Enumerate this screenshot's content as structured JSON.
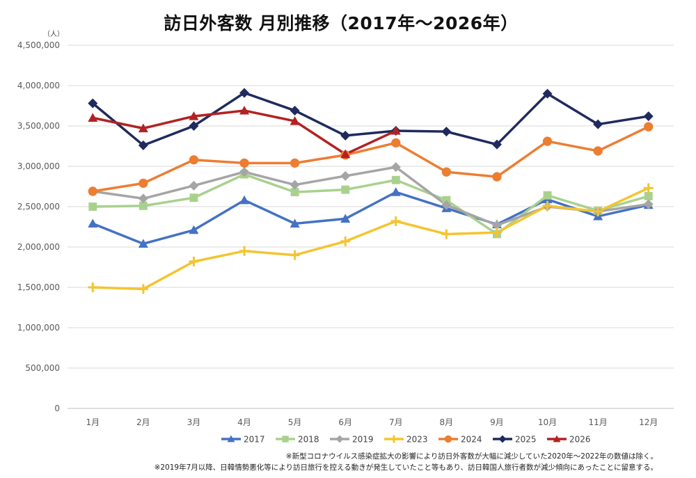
{
  "chart_data": {
    "type": "line",
    "title": "訪日外客数 月別推移（2017年～2026年）",
    "unit_label": "（人）",
    "categories": [
      "1月",
      "2月",
      "3月",
      "4月",
      "5月",
      "6月",
      "7月",
      "8月",
      "9月",
      "10月",
      "11月",
      "12月"
    ],
    "ylim": [
      0,
      4500000
    ],
    "yticks": [
      0,
      500000,
      1000000,
      1500000,
      2000000,
      2500000,
      3000000,
      3500000,
      4000000,
      4500000
    ],
    "ytick_labels": [
      "0",
      "500,000",
      "1,000,000",
      "1,500,000",
      "2,000,000",
      "2,500,000",
      "3,000,000",
      "3,500,000",
      "4,000,000",
      "4,500,000"
    ],
    "grid": true,
    "legend_position": "bottom",
    "series": [
      {
        "name": "2017",
        "color": "#4472C4",
        "marker": "triangle",
        "values": [
          2290000,
          2040000,
          2210000,
          2580000,
          2290000,
          2350000,
          2680000,
          2480000,
          2280000,
          2590000,
          2380000,
          2520000
        ]
      },
      {
        "name": "2018",
        "color": "#A9D18E",
        "marker": "square",
        "values": [
          2500000,
          2510000,
          2610000,
          2900000,
          2680000,
          2710000,
          2830000,
          2580000,
          2160000,
          2640000,
          2450000,
          2630000
        ]
      },
      {
        "name": "2019",
        "color": "#A5A5A5",
        "marker": "diamond",
        "values": [
          2690000,
          2600000,
          2760000,
          2930000,
          2770000,
          2880000,
          2990000,
          2520000,
          2270000,
          2500000,
          2440000,
          2530000
        ]
      },
      {
        "name": "2023",
        "color": "#F4C430",
        "marker": "plus",
        "values": [
          1500000,
          1480000,
          1820000,
          1950000,
          1900000,
          2070000,
          2320000,
          2160000,
          2180000,
          2510000,
          2440000,
          2730000
        ]
      },
      {
        "name": "2024",
        "color": "#ED7D31",
        "marker": "circle",
        "values": [
          2690000,
          2790000,
          3080000,
          3040000,
          3040000,
          3140000,
          3290000,
          2930000,
          2870000,
          3310000,
          3190000,
          3490000
        ]
      },
      {
        "name": "2025",
        "color": "#1F2A5E",
        "marker": "diamond",
        "values": [
          3780000,
          3260000,
          3500000,
          3910000,
          3690000,
          3380000,
          3440000,
          3430000,
          3270000,
          3900000,
          3520000,
          3620000
        ]
      },
      {
        "name": "2026",
        "color": "#B22222",
        "marker": "triangle",
        "values": [
          3600000,
          3470000,
          3620000,
          3690000,
          3560000,
          3150000,
          3440000,
          null,
          null,
          null,
          null,
          null
        ]
      }
    ]
  },
  "notes": {
    "note1": "※新型コロナウイルス感染症拡大の影響により訪日外客数が大幅に減少していた2020年～2022年の数値は除く。",
    "note2": "※2019年7月以降、日韓情勢悪化等により訪日旅行を控える動きが発生していたこと等もあり、訪日韓国人旅行者数が減少傾向にあったことに留意する。"
  }
}
